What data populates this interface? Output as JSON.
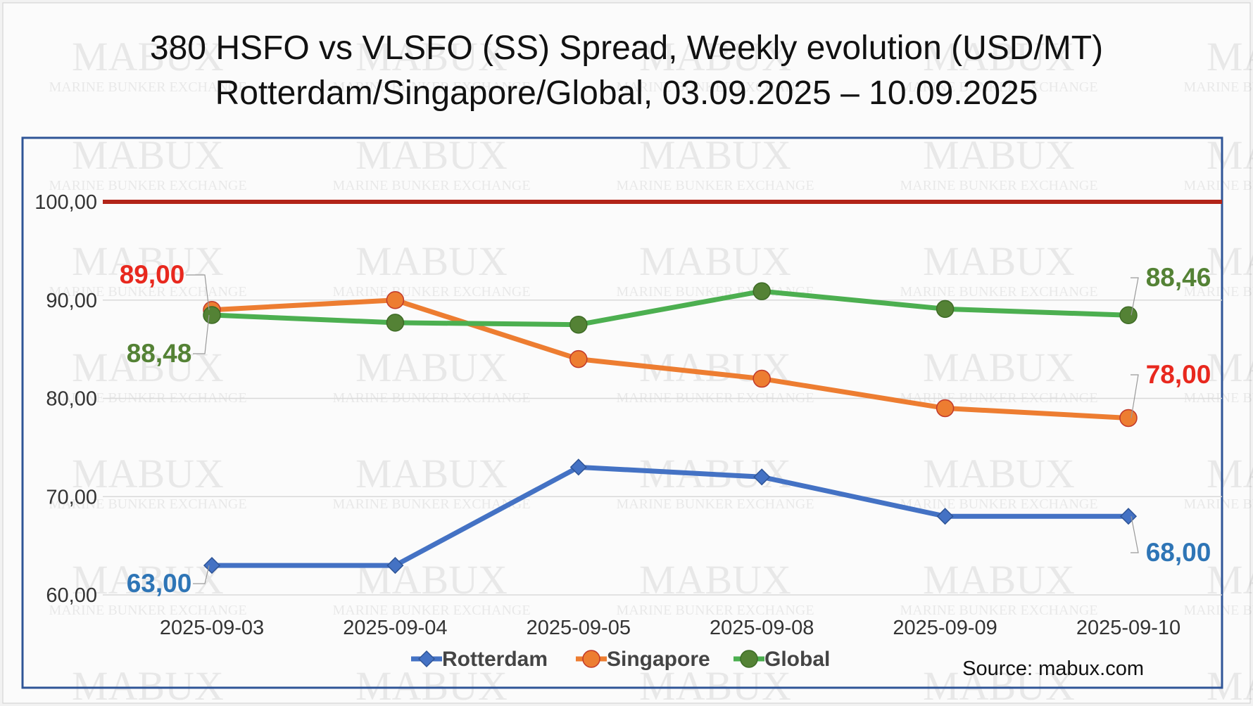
{
  "chart_data": {
    "type": "line",
    "title": "380 HSFO vs VLSFO (SS) Spread, Weekly evolution (USD/MT)",
    "subtitle": "Rotterdam/Singapore/Global, 03.09.2025 – 10.09.2025",
    "categories": [
      "2025-09-03",
      "2025-09-04",
      "2025-09-05",
      "2025-09-08",
      "2025-09-09",
      "2025-09-10"
    ],
    "ylim": [
      60,
      100
    ],
    "yticks": [
      "60,00",
      "70,00",
      "80,00",
      "90,00",
      "100,00"
    ],
    "ytick_values": [
      60,
      70,
      80,
      90,
      100
    ],
    "reference_line": {
      "value": 100,
      "color": "#B22418"
    },
    "grid": true,
    "legend_position": "bottom",
    "series": [
      {
        "name": "Rotterdam",
        "color": "#4472C4",
        "marker": "diamond",
        "values": [
          63,
          63,
          73,
          72,
          68,
          68
        ],
        "first_label": "63,00",
        "last_label": "68,00",
        "label_color": "#2E75B6"
      },
      {
        "name": "Singapore",
        "color": "#ED7D31",
        "marker": "circle",
        "values": [
          89,
          90,
          84,
          82,
          79,
          78
        ],
        "first_label": "89,00",
        "last_label": "78,00",
        "label_color": "#E8281E"
      },
      {
        "name": "Global",
        "color": "#4CAF50",
        "marker": "circle",
        "values": [
          88.48,
          87.7,
          87.5,
          90.9,
          89.1,
          88.46
        ],
        "first_label": "88,48",
        "last_label": "88,46",
        "label_color": "#548235"
      }
    ],
    "source": "Source: mabux.com"
  },
  "watermark": {
    "big": "MABUX",
    "small": "MARINE BUNKER EXCHANGE"
  }
}
